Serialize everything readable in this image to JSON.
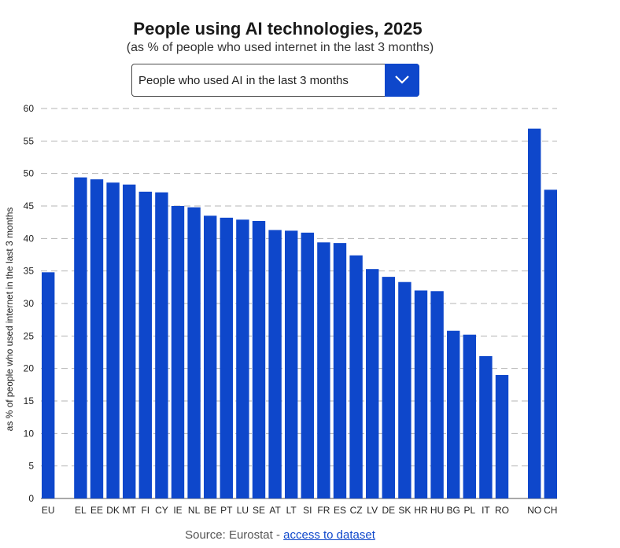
{
  "header": {
    "title": "People using AI technologies, 2025",
    "subtitle": "(as % of people who used internet in the last 3 months)"
  },
  "selector": {
    "selected": "People who used AI in the last 3 months",
    "icon": "chevron-down-icon"
  },
  "footer": {
    "source_prefix": "Source: Eurostat - ",
    "link_text": "access to dataset"
  },
  "colors": {
    "bar": "#0e47cb",
    "grid": "#b5b5b5",
    "accent": "#0e47cb"
  },
  "chart_data": {
    "type": "bar",
    "title": "People using AI technologies, 2025",
    "ylabel": "as % of people who used internet in the last 3 months",
    "xlabel": "",
    "ylim": [
      0,
      60
    ],
    "yticks": [
      0,
      5,
      10,
      15,
      20,
      25,
      30,
      35,
      40,
      45,
      50,
      55,
      60
    ],
    "grid": true,
    "groups": [
      {
        "categories": [
          "EU"
        ],
        "values": [
          34.8
        ]
      },
      {
        "categories": [
          "EL",
          "EE",
          "DK",
          "MT",
          "FI",
          "CY",
          "IE",
          "NL",
          "BE",
          "PT",
          "LU",
          "SE",
          "AT",
          "LT",
          "SI",
          "FR",
          "ES",
          "CZ",
          "LV",
          "DE",
          "SK",
          "HR",
          "HU",
          "BG",
          "PL",
          "IT",
          "RO"
        ],
        "values": [
          49.4,
          49.1,
          48.6,
          48.3,
          47.2,
          47.1,
          45.0,
          44.8,
          43.5,
          43.2,
          42.9,
          42.7,
          41.3,
          41.2,
          40.9,
          39.4,
          39.3,
          37.4,
          35.3,
          34.1,
          33.3,
          32.0,
          31.9,
          25.8,
          25.2,
          21.9,
          19.0
        ]
      },
      {
        "categories": [
          "NO",
          "CH"
        ],
        "values": [
          56.9,
          47.5
        ]
      }
    ]
  }
}
